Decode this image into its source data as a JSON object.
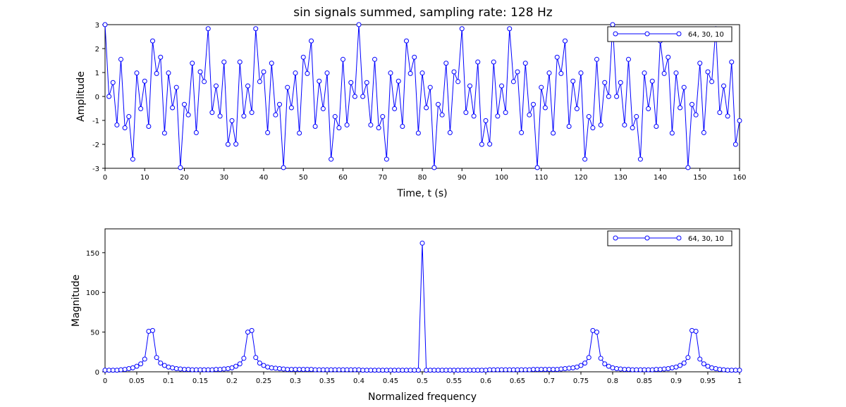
{
  "figure": {
    "title": "sin signals summed, sampling rate: 128 Hz"
  },
  "chart_data": [
    {
      "type": "line",
      "xlabel": "Time, t (s)",
      "ylabel": "Amplitude",
      "xlim": [
        0,
        160
      ],
      "ylim": [
        -3,
        3
      ],
      "xticks": [
        0,
        10,
        20,
        30,
        40,
        50,
        60,
        70,
        80,
        90,
        100,
        110,
        120,
        130,
        140,
        150,
        160
      ],
      "yticks": [
        -3,
        -2,
        -1,
        0,
        1,
        2,
        3
      ],
      "grid": false,
      "legend_position": "top-right",
      "series": [
        {
          "name": "64, 30, 10",
          "color": "#0000ff",
          "marker": "circle",
          "x": [
            0,
            1,
            2,
            3,
            4,
            5,
            6,
            7,
            8,
            9,
            10,
            11,
            12,
            13,
            14,
            15,
            16,
            17,
            18,
            19,
            20,
            21,
            22,
            23,
            24,
            25,
            26,
            27,
            28,
            29,
            30,
            31,
            32,
            33,
            34,
            35,
            36,
            37,
            38,
            39,
            40,
            41,
            42,
            43,
            44,
            45,
            46,
            47,
            48,
            49,
            50,
            51,
            52,
            53,
            54,
            55,
            56,
            57,
            58,
            59,
            60,
            61,
            62,
            63,
            64,
            65,
            66,
            67,
            68,
            69,
            70,
            71,
            72,
            73,
            74,
            75,
            76,
            77,
            78,
            79,
            80,
            81,
            82,
            83,
            84,
            85,
            86,
            87,
            88,
            89,
            90,
            91,
            92,
            93,
            94,
            95,
            96,
            97,
            98,
            99,
            100,
            101,
            102,
            103,
            104,
            105,
            106,
            107,
            108,
            109,
            110,
            111,
            112,
            113,
            114,
            115,
            116,
            117,
            118,
            119,
            120,
            121,
            122,
            123,
            124,
            125,
            126,
            127,
            128,
            129,
            130,
            131,
            132,
            133,
            134,
            135,
            136,
            137,
            138,
            139,
            140,
            141,
            142,
            143,
            144,
            145,
            146,
            147,
            148,
            149,
            150,
            151,
            152,
            153,
            154,
            155,
            156,
            157,
            158,
            159,
            160
          ],
          "values": [
            3.0,
            0.0,
            0.58,
            -1.19,
            1.55,
            -1.31,
            -0.84,
            -2.62,
            0.98,
            -0.51,
            0.64,
            -1.25,
            2.32,
            0.96,
            1.64,
            -1.53,
            0.98,
            -0.47,
            0.38,
            -2.97,
            -0.33,
            -0.77,
            1.39,
            -1.51,
            1.03,
            0.62,
            2.83,
            -0.67,
            0.44,
            -0.82,
            1.44,
            -2.0,
            -1.01,
            -1.99,
            1.44,
            -0.82,
            0.44,
            -0.67,
            2.83,
            0.62,
            1.03,
            -1.51,
            1.39,
            -0.77,
            -0.33,
            -2.97,
            0.38,
            -0.47,
            0.98,
            -1.53,
            1.64,
            0.96,
            2.32,
            -1.25,
            0.64,
            -0.51,
            0.98,
            -2.62,
            -0.84,
            -1.31,
            1.55,
            -1.19,
            0.58,
            0.0,
            3.0,
            0.0,
            0.58,
            -1.19,
            1.55,
            -1.31,
            -0.84,
            -2.62,
            0.98,
            -0.51,
            0.64,
            -1.25,
            2.32,
            0.96,
            1.64,
            -1.53,
            0.98,
            -0.47,
            0.38,
            -2.97,
            -0.33,
            -0.77,
            1.39,
            -1.51,
            1.03,
            0.62,
            2.83,
            -0.67,
            0.44,
            -0.82,
            1.44,
            -2.0,
            -1.01,
            -1.99,
            1.44,
            -0.82,
            0.44,
            -0.67,
            2.83,
            0.62,
            1.03,
            -1.51,
            1.39,
            -0.77,
            -0.33,
            -2.97,
            0.38,
            -0.47,
            0.98,
            -1.53,
            1.64,
            0.96,
            2.32,
            -1.25,
            0.64,
            -0.51,
            0.98,
            -2.62,
            -0.84,
            -1.31,
            1.55,
            -1.19,
            0.58,
            0.0,
            3.0,
            0.0,
            0.58,
            -1.19,
            1.55,
            -1.31,
            -0.84,
            -2.62,
            0.98,
            -0.51,
            0.64,
            -1.25,
            2.32,
            0.96,
            1.64,
            -1.53,
            0.98,
            -0.47,
            0.38,
            -2.97,
            -0.33,
            -0.77,
            1.39,
            -1.51,
            1.03,
            0.62,
            2.83,
            -0.67,
            0.44,
            -0.82,
            1.44,
            -2.0,
            -1.01
          ]
        }
      ]
    },
    {
      "type": "line",
      "xlabel": "Normalized frequency",
      "ylabel": "Magnitude",
      "xlim": [
        0,
        1
      ],
      "ylim": [
        0,
        180
      ],
      "xticks": [
        0,
        0.05,
        0.1,
        0.15,
        0.2,
        0.25,
        0.3,
        0.35,
        0.4,
        0.45,
        0.5,
        0.55,
        0.6,
        0.65,
        0.7,
        0.75,
        0.8,
        0.85,
        0.9,
        0.95,
        1
      ],
      "yticks": [
        0,
        50,
        100,
        150
      ],
      "grid": false,
      "legend_position": "top-right",
      "series": [
        {
          "name": "64, 30, 10",
          "color": "#0000ff",
          "marker": "circle",
          "x": [
            0,
            0.00625,
            0.0125,
            0.01875,
            0.025,
            0.03125,
            0.0375,
            0.04375,
            0.05,
            0.05625,
            0.0625,
            0.06875,
            0.075,
            0.08125,
            0.0875,
            0.09375,
            0.1,
            0.10625,
            0.1125,
            0.11875,
            0.125,
            0.13125,
            0.1375,
            0.14375,
            0.15,
            0.15625,
            0.1625,
            0.16875,
            0.175,
            0.18125,
            0.1875,
            0.19375,
            0.2,
            0.20625,
            0.2125,
            0.21875,
            0.225,
            0.23125,
            0.2375,
            0.24375,
            0.25,
            0.25625,
            0.2625,
            0.26875,
            0.275,
            0.28125,
            0.2875,
            0.29375,
            0.3,
            0.30625,
            0.3125,
            0.31875,
            0.325,
            0.33125,
            0.3375,
            0.34375,
            0.35,
            0.35625,
            0.3625,
            0.36875,
            0.375,
            0.38125,
            0.3875,
            0.39375,
            0.4,
            0.40625,
            0.4125,
            0.41875,
            0.425,
            0.43125,
            0.4375,
            0.44375,
            0.45,
            0.45625,
            0.4625,
            0.46875,
            0.475,
            0.48125,
            0.4875,
            0.49375,
            0.5,
            0.50625,
            0.5125,
            0.51875,
            0.525,
            0.53125,
            0.5375,
            0.54375,
            0.55,
            0.55625,
            0.5625,
            0.56875,
            0.575,
            0.58125,
            0.5875,
            0.59375,
            0.6,
            0.60625,
            0.6125,
            0.61875,
            0.625,
            0.63125,
            0.6375,
            0.64375,
            0.65,
            0.65625,
            0.6625,
            0.66875,
            0.675,
            0.68125,
            0.6875,
            0.69375,
            0.7,
            0.70625,
            0.7125,
            0.71875,
            0.725,
            0.73125,
            0.7375,
            0.74375,
            0.75,
            0.75625,
            0.7625,
            0.76875,
            0.775,
            0.78125,
            0.7875,
            0.79375,
            0.8,
            0.80625,
            0.8125,
            0.81875,
            0.825,
            0.83125,
            0.8375,
            0.84375,
            0.85,
            0.85625,
            0.8625,
            0.86875,
            0.875,
            0.88125,
            0.8875,
            0.89375,
            0.9,
            0.90625,
            0.9125,
            0.91875,
            0.925,
            0.93125,
            0.9375,
            0.94375,
            0.95,
            0.95625,
            0.9625,
            0.96875,
            0.975,
            0.98125,
            0.9875,
            0.99375,
            1
          ],
          "values": [
            2,
            2,
            2,
            2,
            2.5,
            3,
            4,
            5,
            7,
            10,
            16,
            51,
            52,
            18,
            11,
            8,
            6,
            5,
            4,
            3.5,
            3,
            3,
            2.5,
            2.5,
            2.5,
            2.5,
            2.5,
            2.5,
            3,
            3,
            3.5,
            4,
            5,
            7,
            10,
            17,
            50,
            52,
            18,
            11,
            8,
            6,
            5,
            4.5,
            4,
            3.5,
            3,
            3,
            3,
            3,
            3,
            3,
            3,
            2.5,
            2.5,
            2.5,
            2.5,
            2.5,
            2.5,
            2.5,
            2.5,
            2.5,
            2.5,
            2.5,
            2.5,
            2,
            2,
            2,
            2,
            2,
            2,
            2,
            2,
            2,
            2,
            2,
            2,
            2,
            2,
            2,
            162,
            2,
            2,
            2,
            2,
            2,
            2,
            2,
            2,
            2,
            2,
            2,
            2,
            2,
            2,
            2,
            2,
            2.5,
            2.5,
            2.5,
            2.5,
            2.5,
            2.5,
            2.5,
            2.5,
            2.5,
            2.5,
            2.5,
            3,
            3,
            3,
            3,
            3,
            3,
            3,
            3.5,
            4,
            4.5,
            5,
            6,
            8,
            11,
            18,
            52,
            50,
            17,
            10,
            7,
            5,
            4,
            3.5,
            3,
            3,
            2.5,
            2.5,
            2.5,
            2.5,
            2.5,
            2.5,
            3,
            3,
            3.5,
            4,
            5,
            6,
            8,
            11,
            18,
            52,
            51,
            16,
            10,
            7,
            5,
            4,
            3,
            2.5,
            2,
            2,
            2,
            2
          ]
        }
      ]
    }
  ]
}
